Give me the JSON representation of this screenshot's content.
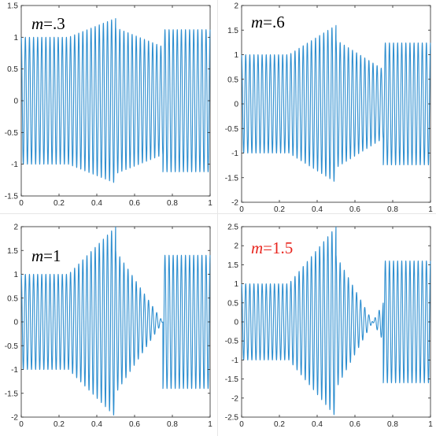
{
  "colors": {
    "signal": "#2f8fd0",
    "axes": "#262626",
    "label_default": "#000000",
    "label_highlight": "#e8251e"
  },
  "chart_data": [
    {
      "type": "line",
      "label_prefix": "m",
      "label_suffix": "=.3",
      "label_color": "#000000",
      "m": 0.3,
      "xlim": [
        0,
        1
      ],
      "ylim": [
        -1.5,
        1.5
      ],
      "xticks": [
        "0",
        "0.2",
        "0.4",
        "0.6",
        "0.8",
        "1"
      ],
      "yticks": [
        "1.5",
        "1",
        "0.5",
        "0",
        "-0.5",
        "-1",
        "-1.5"
      ],
      "grid": false,
      "envelope_segments": [
        {
          "x": [
            0,
            0.25
          ],
          "y": [
            1,
            1
          ]
        },
        {
          "x": [
            0.25,
            0.5
          ],
          "y": [
            1,
            1.3
          ]
        },
        {
          "x": [
            0.5,
            0.75
          ],
          "y": [
            1.15,
            0.85
          ]
        },
        {
          "x": [
            0.75,
            1
          ],
          "y": [
            1.12,
            1.12
          ]
        }
      ]
    },
    {
      "type": "line",
      "label_prefix": "m",
      "label_suffix": "=.6",
      "label_color": "#000000",
      "m": 0.6,
      "xlim": [
        0,
        1
      ],
      "ylim": [
        -2,
        2
      ],
      "xticks": [
        "0",
        "0.2",
        "0.4",
        "0.6",
        "0.8",
        "1"
      ],
      "yticks": [
        "2",
        "1.5",
        "1",
        "0.5",
        "0",
        "-0.5",
        "-1",
        "-1.5",
        "-2"
      ],
      "grid": false,
      "envelope_segments": [
        {
          "x": [
            0,
            0.25
          ],
          "y": [
            1,
            1
          ]
        },
        {
          "x": [
            0.25,
            0.5
          ],
          "y": [
            1,
            1.6
          ]
        },
        {
          "x": [
            0.5,
            0.75
          ],
          "y": [
            1.3,
            0.7
          ]
        },
        {
          "x": [
            0.75,
            1
          ],
          "y": [
            1.24,
            1.24
          ]
        }
      ]
    },
    {
      "type": "line",
      "label_prefix": "m",
      "label_suffix": "=1",
      "label_color": "#000000",
      "m": 1,
      "xlim": [
        0,
        1
      ],
      "ylim": [
        -2,
        2
      ],
      "xticks": [
        "0",
        "0.2",
        "0.4",
        "0.6",
        "0.8",
        "1"
      ],
      "yticks": [
        "2",
        "1.5",
        "1",
        "0.5",
        "0",
        "-0.5",
        "-1",
        "-1.5",
        "-2"
      ],
      "grid": false,
      "envelope_segments": [
        {
          "x": [
            0,
            0.25
          ],
          "y": [
            1,
            1
          ]
        },
        {
          "x": [
            0.25,
            0.5
          ],
          "y": [
            1,
            2
          ]
        },
        {
          "x": [
            0.5,
            0.75
          ],
          "y": [
            1.5,
            0
          ]
        },
        {
          "x": [
            0.75,
            1
          ],
          "y": [
            1.4,
            1.4
          ]
        }
      ]
    },
    {
      "type": "line",
      "label_prefix": "m",
      "label_suffix": "=1.5",
      "label_color": "#e8251e",
      "m": 1.5,
      "xlim": [
        0,
        1
      ],
      "ylim": [
        -2.5,
        2.5
      ],
      "xticks": [
        "0",
        "0.2",
        "0.4",
        "0.6",
        "0.8",
        "1"
      ],
      "yticks": [
        "2.5",
        "2",
        "1.5",
        "1",
        "0.5",
        "0",
        "-0.5",
        "-1",
        "-1.5",
        "-2",
        "-2.5"
      ],
      "grid": false,
      "envelope_segments": [
        {
          "x": [
            0,
            0.25
          ],
          "y": [
            1,
            1
          ]
        },
        {
          "x": [
            0.25,
            0.5
          ],
          "y": [
            1,
            2.5
          ]
        },
        {
          "x": [
            0.5,
            0.75
          ],
          "y": [
            1.75,
            -0.5
          ]
        },
        {
          "x": [
            0.75,
            1
          ],
          "y": [
            1.6,
            1.6
          ]
        }
      ]
    }
  ]
}
